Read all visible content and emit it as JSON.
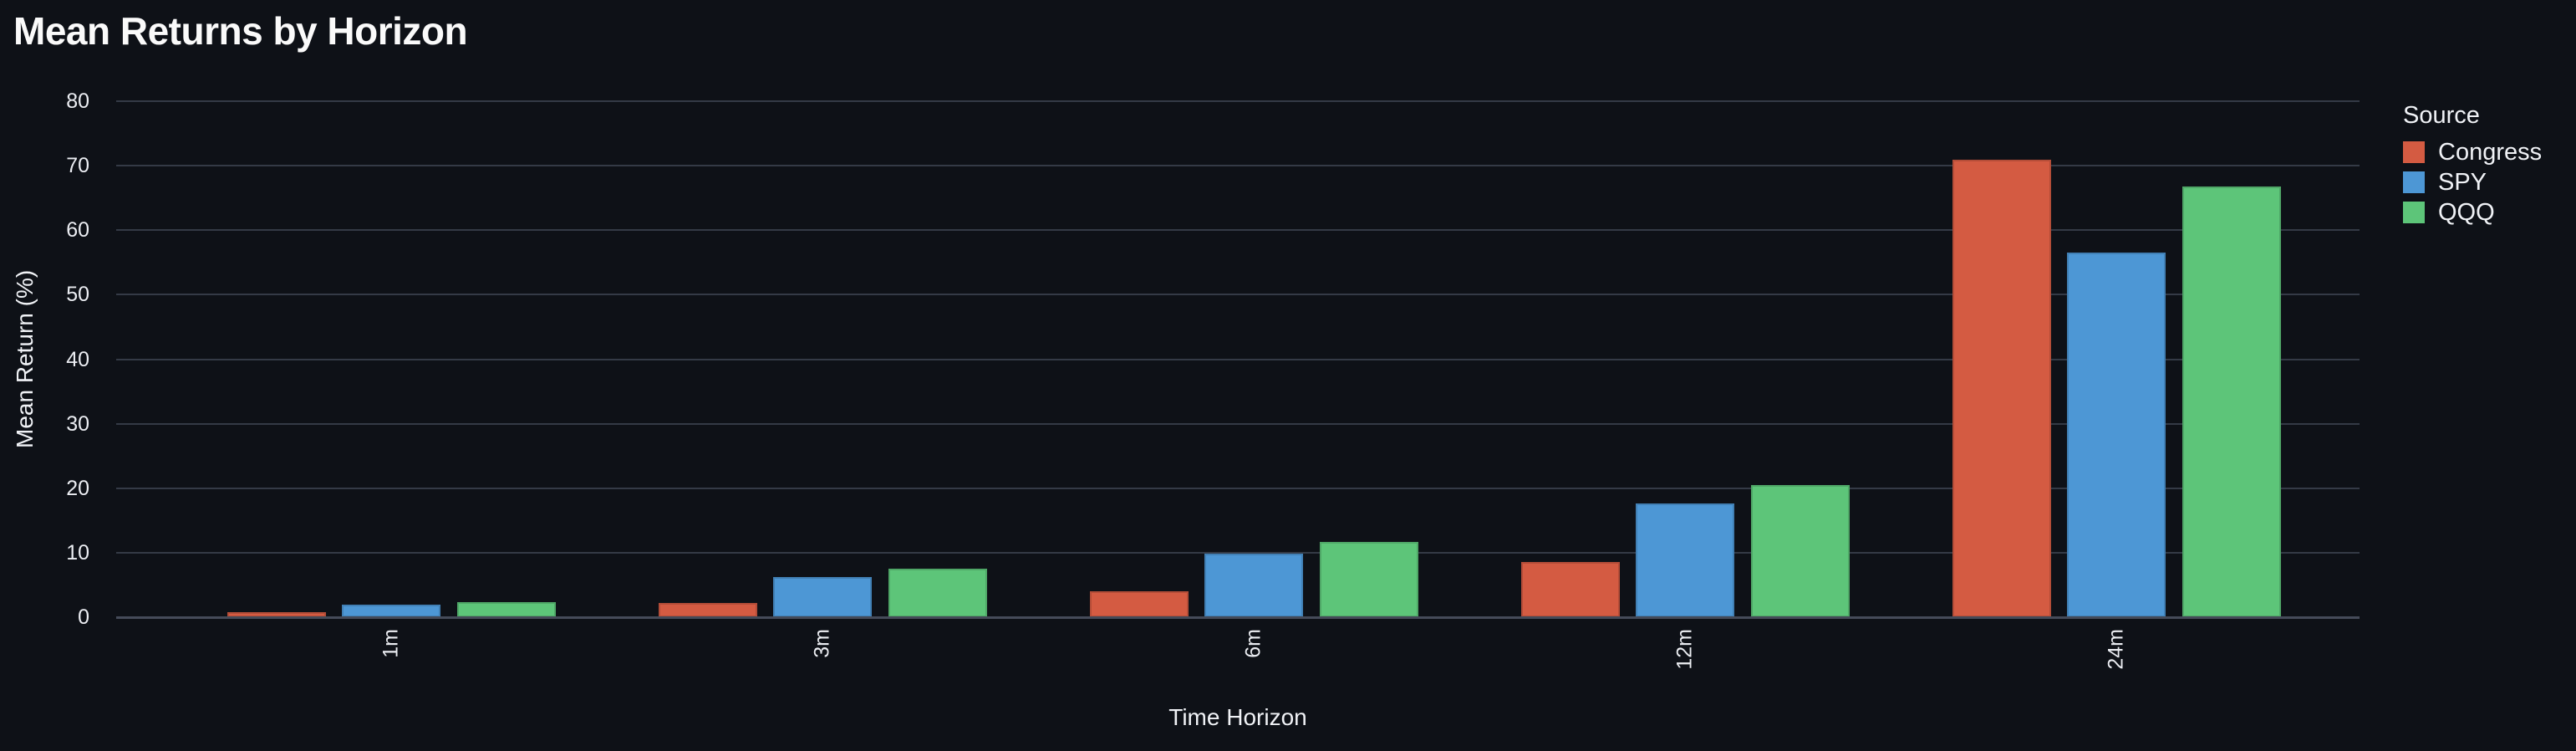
{
  "title": "Mean Returns by Horizon",
  "axes": {
    "x_label": "Time Horizon",
    "y_label": "Mean Return (%)",
    "y_ticks": [
      "0",
      "10",
      "20",
      "30",
      "40",
      "50",
      "60",
      "70",
      "80"
    ]
  },
  "legend": {
    "title": "Source",
    "items": [
      {
        "label": "Congress",
        "color": "#d45b42"
      },
      {
        "label": "SPY",
        "color": "#4d97d5"
      },
      {
        "label": "QQQ",
        "color": "#5dc579"
      }
    ]
  },
  "colors": {
    "background": "#0e1117",
    "title_text": "#fafafa",
    "tick_text": "#ebedf2",
    "gridline": "#343a46",
    "axis_line": "#454b59",
    "congress_red": "#d45b42",
    "spy_blue": "#4d97d5",
    "qqq_green": "#5dc579"
  },
  "chart_data": {
    "type": "bar",
    "title": "Mean Returns by Horizon",
    "xlabel": "Time Horizon",
    "ylabel": "Mean Return (%)",
    "categories": [
      "1m",
      "3m",
      "6m",
      "12m",
      "24m"
    ],
    "series": [
      {
        "name": "Congress",
        "color": "#d45b42",
        "values": [
          0.8,
          2.2,
          4.0,
          8.6,
          70.9
        ]
      },
      {
        "name": "SPY",
        "color": "#4d97d5",
        "values": [
          1.9,
          6.2,
          9.9,
          17.7,
          56.5
        ]
      },
      {
        "name": "QQQ",
        "color": "#5dc579",
        "values": [
          2.4,
          7.5,
          11.7,
          20.5,
          66.8
        ]
      }
    ],
    "ylim": [
      0,
      80
    ],
    "y_tick_step": 10,
    "grid": true,
    "legend_title": "Source",
    "legend_position": "right"
  }
}
